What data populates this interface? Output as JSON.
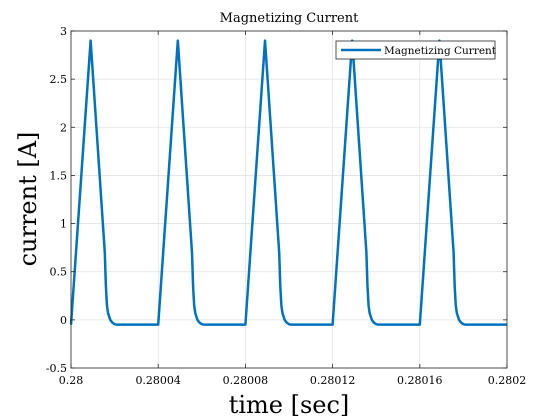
{
  "chart_data": {
    "type": "line",
    "title": "Magnetizing Current",
    "xlabel": "time [sec]",
    "ylabel": "current [A]",
    "xlim": [
      0.28,
      0.2802
    ],
    "ylim": [
      -0.5,
      3
    ],
    "x_ticks": [
      0.28,
      0.28004,
      0.28008,
      0.28012,
      0.28016,
      0.2802
    ],
    "x_tick_labels": [
      "0.28",
      "0.28004",
      "0.28008",
      "0.28012",
      "0.28016",
      "0.2802"
    ],
    "y_ticks": [
      -0.5,
      0,
      0.5,
      1,
      1.5,
      2,
      2.5,
      3
    ],
    "y_tick_labels": [
      "-0.5",
      "0",
      "0.5",
      "1",
      "1.5",
      "2",
      "2.5",
      "3"
    ],
    "grid": true,
    "legend_position": "top-right",
    "series": [
      {
        "name": "Magnetizing Current",
        "color": "#0072BD",
        "x": [
          0.28,
          0.280009,
          0.2800155,
          0.280016,
          0.2800165,
          0.280017,
          0.280018,
          0.280019,
          0.28002,
          0.280021,
          0.280023,
          0.28004,
          0.280049,
          0.2800555,
          0.280056,
          0.2800565,
          0.280057,
          0.280058,
          0.280059,
          0.28006,
          0.280061,
          0.280063,
          0.28008,
          0.280089,
          0.2800955,
          0.280096,
          0.2800965,
          0.280097,
          0.280098,
          0.280099,
          0.2801,
          0.280101,
          0.280103,
          0.28012,
          0.280129,
          0.2801355,
          0.280136,
          0.2801365,
          0.280137,
          0.280138,
          0.280139,
          0.28014,
          0.280141,
          0.280143,
          0.28016,
          0.280169,
          0.2801755,
          0.280176,
          0.2801765,
          0.280177,
          0.280178,
          0.280179,
          0.28018,
          0.280181,
          0.280183,
          0.2802
        ],
        "y": [
          -0.05,
          2.9,
          0.7,
          0.35,
          0.15,
          0.07,
          0.0,
          -0.03,
          -0.045,
          -0.05,
          -0.05,
          -0.05,
          2.9,
          0.7,
          0.35,
          0.15,
          0.07,
          0.0,
          -0.03,
          -0.045,
          -0.05,
          -0.05,
          -0.05,
          2.9,
          0.7,
          0.35,
          0.15,
          0.07,
          0.0,
          -0.03,
          -0.045,
          -0.05,
          -0.05,
          -0.05,
          2.9,
          0.7,
          0.35,
          0.15,
          0.07,
          0.0,
          -0.03,
          -0.045,
          -0.05,
          -0.05,
          -0.05,
          2.9,
          0.7,
          0.35,
          0.15,
          0.07,
          0.0,
          -0.03,
          -0.045,
          -0.05,
          -0.05,
          -0.05
        ]
      }
    ]
  }
}
